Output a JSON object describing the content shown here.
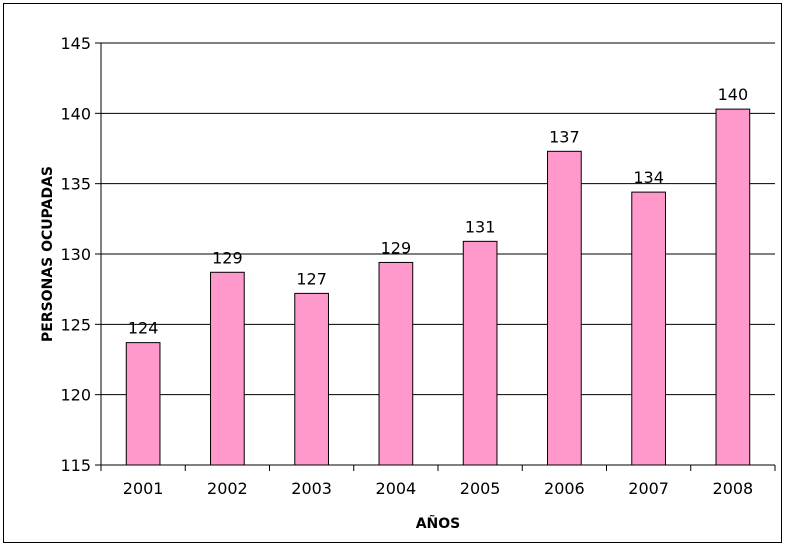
{
  "chart_data": {
    "type": "bar",
    "title": "",
    "xlabel": "AÑOS",
    "ylabel": "PERSONAS OCUPADAS",
    "categories": [
      "2001",
      "2002",
      "2003",
      "2004",
      "2005",
      "2006",
      "2007",
      "2008"
    ],
    "values": [
      123.7,
      128.7,
      127.2,
      129.4,
      130.9,
      137.3,
      134.4,
      140.3
    ],
    "data_labels": [
      "124",
      "129",
      "127",
      "129",
      "131",
      "137",
      "134",
      "140"
    ],
    "ylim": [
      115,
      145
    ],
    "yticks": [
      115,
      120,
      125,
      130,
      135,
      140,
      145
    ],
    "grid": true,
    "legend": "none",
    "bar_color": "#ff99cc",
    "bar_edge_color": "#000000",
    "grid_color": "#000000"
  }
}
